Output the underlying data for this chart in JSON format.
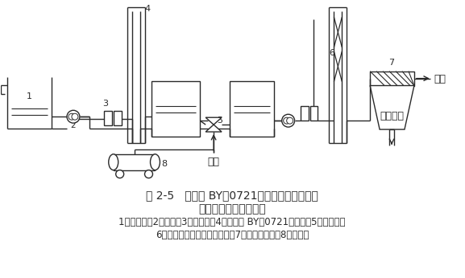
{
  "title_line1": "图 2-5   酵母菌 BY－0721－焦炭固定床生物膜",
  "title_line2": "二段处理淀粉废水工艺",
  "caption1": "1－废水槽；2－水泵；3－流量计；4－酵母菌 BY－0721曝气塔；5－离心泵；",
  "caption2": "6－焦炭固定床生物膜曝气塔；7－斜板沉淀池；8－空压机",
  "bg_color": "#ffffff",
  "line_color": "#2a2a2a",
  "title_fontsize": 10,
  "caption_fontsize": 8.5
}
